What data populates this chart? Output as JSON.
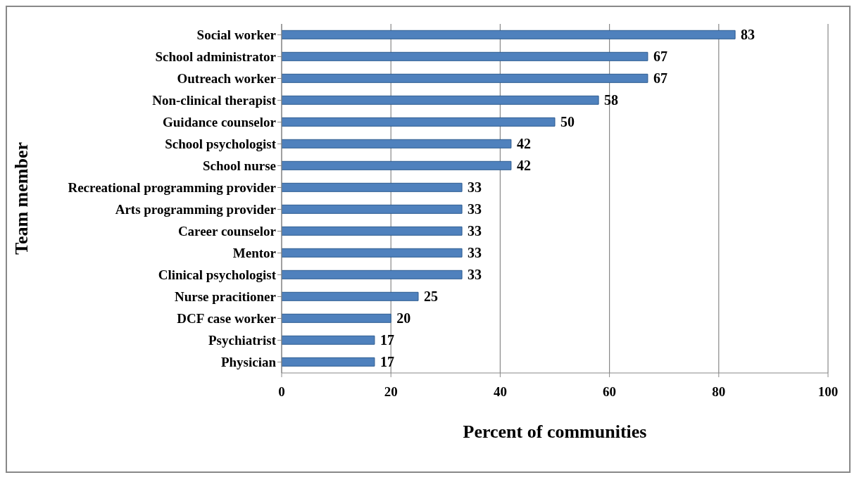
{
  "chart_data": {
    "type": "bar",
    "orientation": "horizontal",
    "xlabel": "Percent of communities",
    "ylabel": "Team member",
    "categories": [
      "Social worker",
      "School administrator",
      "Outreach worker",
      "Non-clinical therapist",
      "Guidance counselor",
      "School psychologist",
      "School nurse",
      "Recreational programming provider",
      "Arts programming provider",
      "Career counselor",
      "Mentor",
      "Clinical psychologist",
      "Nurse pracitioner",
      "DCF case worker",
      "Psychiatrist",
      "Physician"
    ],
    "values": [
      83,
      67,
      67,
      58,
      50,
      42,
      42,
      33,
      33,
      33,
      33,
      33,
      25,
      20,
      17,
      17
    ],
    "color": "#4f81bd",
    "xlim": [
      0,
      100
    ],
    "xticks": [
      0,
      20,
      40,
      60,
      80,
      100
    ],
    "grid": "x",
    "data_labels": true
  }
}
